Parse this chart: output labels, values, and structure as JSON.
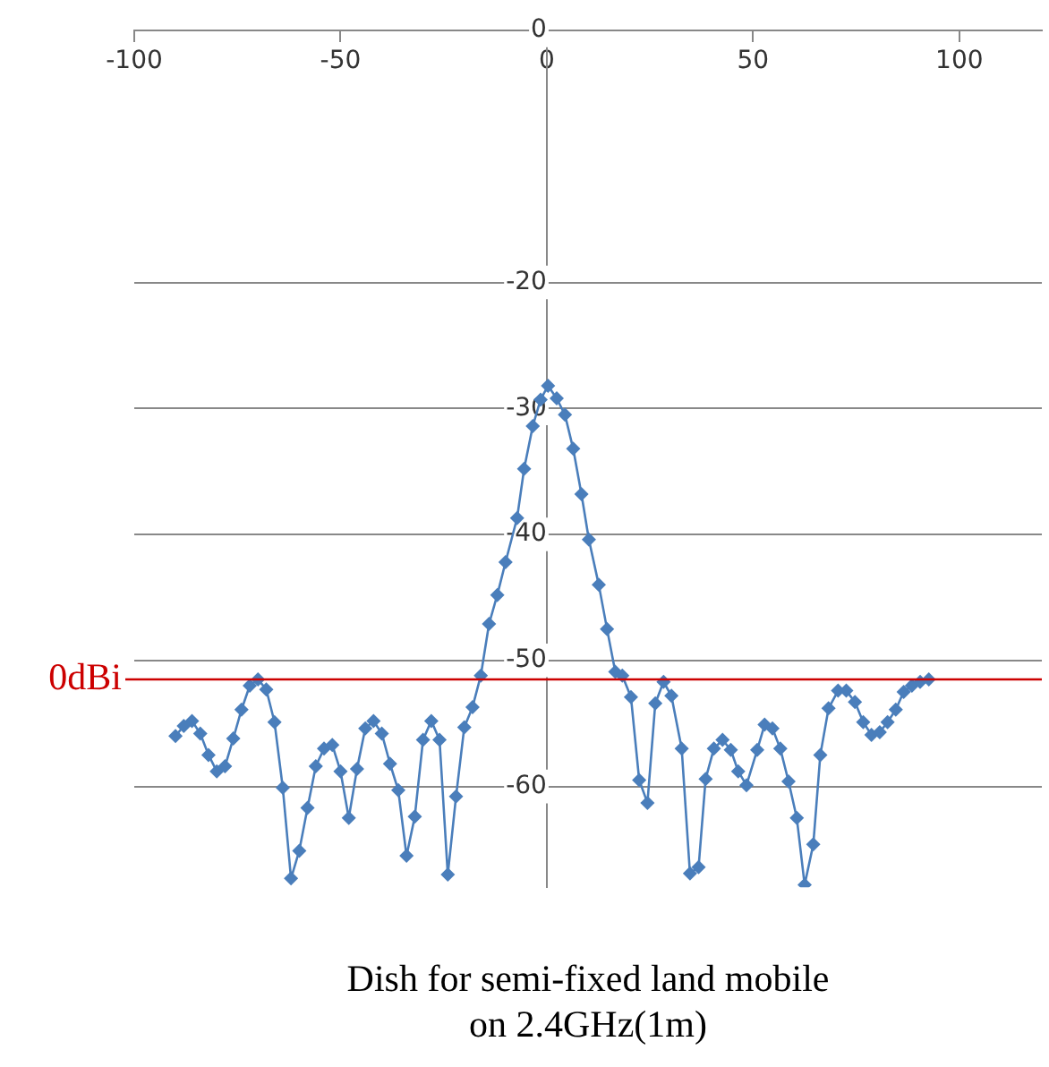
{
  "chart_data": {
    "type": "line",
    "title": "Dish for semi-fixed land mobile\non 2.4GHz(1m)",
    "x": [
      -90,
      -88,
      -86,
      -84,
      -82,
      -80,
      -78,
      -76,
      -74,
      -72,
      -70,
      -68,
      -66,
      -64,
      -62,
      -60,
      -58,
      -56,
      -54,
      -52,
      -50,
      -48,
      -46,
      -44,
      -42,
      -40,
      -38,
      -36,
      -34,
      -32,
      -30,
      -28,
      -26,
      -24,
      -22,
      -20,
      -18,
      -16,
      -14,
      -12,
      -10,
      -7.2,
      -5.5,
      -3.4,
      -1.5,
      0.3,
      2.4,
      4.4,
      6.4,
      8.4,
      10.2,
      12.6,
      14.6,
      16.6,
      18.3,
      20.4,
      22.4,
      24.4,
      26.3,
      28.3,
      30.2,
      32.7,
      34.7,
      36.8,
      38.5,
      40.5,
      42.6,
      44.6,
      46.4,
      48.4,
      51,
      52.8,
      54.7,
      56.6,
      58.6,
      60.6,
      62.5,
      64.6,
      66.3,
      68.3,
      70.6,
      72.6,
      74.7,
      76.7,
      78.7,
      80.7,
      82.6,
      84.6,
      86.5,
      88.5,
      90.5,
      92.6
    ],
    "series": [
      {
        "color": "#4a7ebb",
        "values": [
          -56.0,
          -55.2,
          -54.8,
          -55.8,
          -57.5,
          -58.8,
          -58.4,
          -56.2,
          -53.9,
          -52.0,
          -51.5,
          -52.3,
          -54.9,
          -60.1,
          -67.3,
          -65.1,
          -61.7,
          -58.4,
          -57.0,
          -56.7,
          -58.8,
          -62.5,
          -58.6,
          -55.4,
          -54.8,
          -55.8,
          -58.2,
          -60.3,
          -65.5,
          -62.4,
          -56.3,
          -54.8,
          -56.3,
          -67.0,
          -60.8,
          -55.3,
          -53.7,
          -51.2,
          -47.1,
          -44.8,
          -42.2,
          -38.7,
          -34.8,
          -31.4,
          -29.3,
          -28.2,
          -29.2,
          -30.5,
          -33.2,
          -36.8,
          -40.4,
          -44.0,
          -47.5,
          -50.9,
          -51.2,
          -52.9,
          -59.5,
          -61.3,
          -53.4,
          -51.7,
          -52.8,
          -57.0,
          -66.9,
          -66.4,
          -59.4,
          -57.0,
          -56.3,
          -57.1,
          -58.8,
          -59.9,
          -57.1,
          -55.1,
          -55.4,
          -57.0,
          -59.6,
          -62.5,
          -67.8,
          -64.6,
          -57.5,
          -53.8,
          -52.4,
          -52.4,
          -53.3,
          -54.9,
          -55.9,
          -55.7,
          -54.9,
          -53.9,
          -52.5,
          -52.0,
          -51.7,
          -51.5
        ]
      }
    ],
    "xlim": [
      -100,
      120
    ],
    "xticks": [
      -100,
      -50,
      0,
      50,
      100
    ],
    "ylim": [
      -68,
      0
    ],
    "yticks": [
      0,
      -20,
      -30,
      -40,
      -50,
      -60
    ],
    "ref_lines": [
      {
        "axis": "y",
        "value": -51.5,
        "label": "0dBi",
        "color": "#cc0000"
      }
    ],
    "grid": "y",
    "marker": "diamond",
    "line_style": "solid",
    "legend": false
  }
}
